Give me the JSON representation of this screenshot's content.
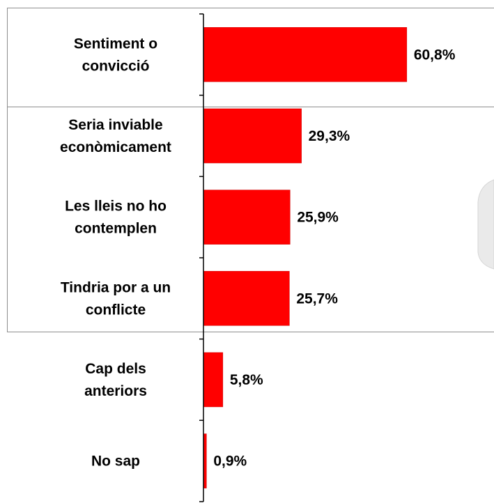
{
  "chart_data": {
    "type": "bar",
    "orientation": "horizontal",
    "categories": [
      [
        "Sentiment o",
        "convicció"
      ],
      [
        "Seria inviable",
        "econòmicament"
      ],
      [
        "Les lleis no ho",
        "contemplen"
      ],
      [
        "Tindria por a un",
        "conflicte"
      ],
      [
        "Cap dels",
        "anteriors"
      ],
      [
        "No sap"
      ]
    ],
    "values": [
      60.8,
      29.3,
      25.9,
      25.7,
      5.8,
      0.9
    ],
    "value_labels": [
      "60,8%",
      "29,3%",
      "25,9%",
      "25,7%",
      "5,8%",
      "0,9%"
    ],
    "xlim": [
      0,
      100
    ],
    "legend": "none",
    "grid": false,
    "colors": {
      "bar": "#ff0000",
      "bar_edge": "#cc0000",
      "axis": "#000000",
      "frame": "#8c8c8c"
    }
  }
}
